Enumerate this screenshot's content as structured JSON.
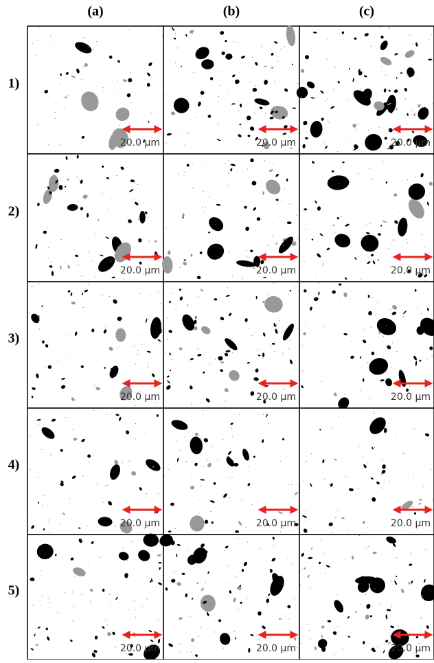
{
  "columns": [
    "(a)",
    "(b)",
    "(c)"
  ],
  "rows": [
    {
      "label": "1)",
      "cells": [
        {
          "scale": "20.0 µm"
        },
        {
          "scale": "20.0 µm"
        },
        {
          "scale": "20.0 µm"
        }
      ]
    },
    {
      "label": "2)",
      "cells": [
        {
          "scale": "20.0 µm"
        },
        {
          "scale": "20.0 µm"
        },
        {
          "scale": "20.0 µm"
        }
      ]
    },
    {
      "label": "3)",
      "cells": [
        {
          "scale": "20.0 µm"
        },
        {
          "scale": "20.0 µm"
        },
        {
          "scale": "20.0 µm"
        }
      ]
    },
    {
      "label": "4)",
      "cells": [
        {
          "scale": "20.0 µm"
        },
        {
          "scale": "20.0 µm"
        },
        {
          "scale": "20.0 µm"
        }
      ]
    },
    {
      "label": "5)",
      "cells": [
        {
          "scale": "20.0 µm"
        },
        {
          "scale": "20.0 µm"
        },
        {
          "scale": "20.0 µm"
        }
      ]
    }
  ]
}
